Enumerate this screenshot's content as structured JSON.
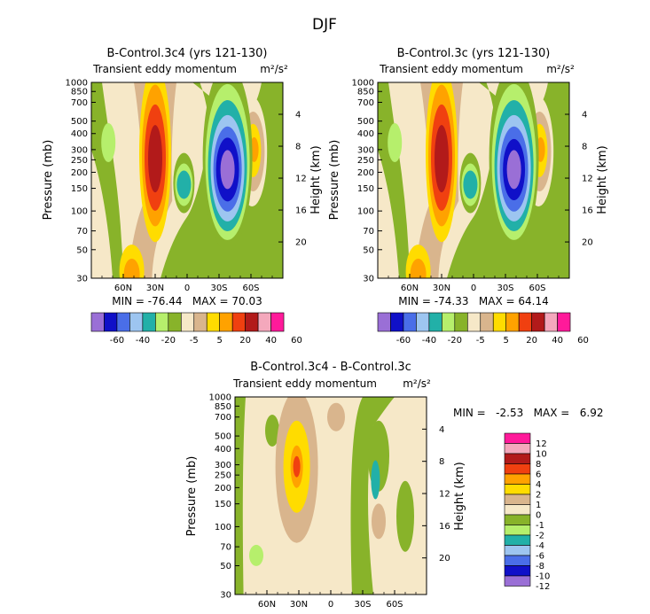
{
  "figure_title": "DJF",
  "chart_data": [
    {
      "type": "contour",
      "title": "B-Control.3c4 (yrs 121-130)",
      "subtitle": "Transient eddy momentum",
      "units": "m²/s²",
      "ylabel": "Pressure (mb)",
      "ylabel_right": "Height (km)",
      "x_ticks": [
        "60N",
        "30N",
        "0",
        "30S",
        "60S"
      ],
      "x_tick_values": [
        60,
        30,
        0,
        -30,
        -60
      ],
      "xlim": [
        90,
        -90
      ],
      "y_ticks": [
        "30",
        "50",
        "70",
        "100",
        "150",
        "200",
        "250",
        "300",
        "400",
        "500",
        "700",
        "850",
        "1000"
      ],
      "y_tick_values": [
        30,
        50,
        70,
        100,
        150,
        200,
        250,
        300,
        400,
        500,
        700,
        850,
        1000
      ],
      "ylim": [
        1000,
        30
      ],
      "height_ticks": [
        "20",
        "16",
        "12",
        "8",
        "4"
      ],
      "height_tick_values": [
        20,
        16,
        12,
        8,
        4
      ],
      "min_max_text": "MIN = -76.44   MAX = 70.03",
      "min": -76.44,
      "max": 70.03,
      "contour_levels": [
        "-60",
        "-40",
        "-20",
        "-5",
        "5",
        "20",
        "40",
        "60"
      ],
      "features": [
        {
          "name": "jet positive 30N",
          "lat": 30,
          "p": 260,
          "value": 70.03
        },
        {
          "name": "upper positive 60N",
          "lat": 52,
          "p": 35,
          "value": 25
        },
        {
          "name": "minimum 35S",
          "lat": -38,
          "p": 210,
          "value": -76.44
        },
        {
          "name": "small negative eq",
          "lat": 3,
          "p": 170,
          "value": -25
        },
        {
          "name": "positive 60S",
          "lat": -62,
          "p": 290,
          "value": 35
        }
      ]
    },
    {
      "type": "contour",
      "title": "B-Control.3c (yrs 121-130)",
      "subtitle": "Transient eddy momentum",
      "units": "m²/s²",
      "ylabel": "Pressure (mb)",
      "ylabel_right": "Height (km)",
      "x_ticks": [
        "60N",
        "30N",
        "0",
        "30S",
        "60S"
      ],
      "x_tick_values": [
        60,
        30,
        0,
        -30,
        -60
      ],
      "xlim": [
        90,
        -90
      ],
      "y_ticks": [
        "30",
        "50",
        "70",
        "100",
        "150",
        "200",
        "250",
        "300",
        "400",
        "500",
        "700",
        "850",
        "1000"
      ],
      "y_tick_values": [
        30,
        50,
        70,
        100,
        150,
        200,
        250,
        300,
        400,
        500,
        700,
        850,
        1000
      ],
      "ylim": [
        1000,
        30
      ],
      "height_ticks": [
        "20",
        "16",
        "12",
        "8",
        "4"
      ],
      "height_tick_values": [
        20,
        16,
        12,
        8,
        4
      ],
      "min_max_text": "MIN = -74.33   MAX = 64.14",
      "min": -74.33,
      "max": 64.14,
      "contour_levels": [
        "-60",
        "-40",
        "-20",
        "-5",
        "5",
        "20",
        "40",
        "60"
      ],
      "features": [
        {
          "name": "jet positive 30N",
          "lat": 30,
          "p": 255,
          "value": 64.14
        },
        {
          "name": "upper positive 60N",
          "lat": 52,
          "p": 35,
          "value": 25
        },
        {
          "name": "minimum 35S",
          "lat": -38,
          "p": 205,
          "value": -74.33
        },
        {
          "name": "small negative eq",
          "lat": 3,
          "p": 170,
          "value": -25
        },
        {
          "name": "positive 60S",
          "lat": -62,
          "p": 290,
          "value": 32
        }
      ]
    },
    {
      "type": "contour",
      "title": "B-Control.3c4 - B-Control.3c",
      "subtitle": "Transient eddy momentum",
      "units": "m²/s²",
      "ylabel": "Pressure (mb)",
      "ylabel_right": "Height (km)",
      "x_ticks": [
        "60N",
        "30N",
        "0",
        "30S",
        "60S"
      ],
      "x_tick_values": [
        60,
        30,
        0,
        -30,
        -60
      ],
      "xlim": [
        90,
        -90
      ],
      "y_ticks": [
        "30",
        "50",
        "70",
        "100",
        "150",
        "200",
        "250",
        "300",
        "400",
        "500",
        "700",
        "850",
        "1000"
      ],
      "y_tick_values": [
        30,
        50,
        70,
        100,
        150,
        200,
        250,
        300,
        400,
        500,
        700,
        850,
        1000
      ],
      "ylim": [
        1000,
        30
      ],
      "height_ticks": [
        "20",
        "16",
        "12",
        "8",
        "4"
      ],
      "height_tick_values": [
        20,
        16,
        12,
        8,
        4
      ],
      "min_max_text": "MIN =   -2.53   MAX =   6.92",
      "min": -2.53,
      "max": 6.92,
      "contour_levels": [
        "12",
        "10",
        "8",
        "6",
        "4",
        "2",
        "1",
        "0",
        "-1",
        "-2",
        "-4",
        "-6",
        "-8",
        "-10",
        "-12"
      ],
      "features": [
        {
          "name": "positive 30N",
          "lat": 32,
          "p": 290,
          "value": 6.92
        },
        {
          "name": "negative 40S",
          "lat": -42,
          "p": 230,
          "value": -2.53
        }
      ]
    }
  ],
  "colorbar_top": {
    "labels": [
      "-60",
      "-40",
      "-20",
      "-5",
      "5",
      "20",
      "40",
      "60"
    ],
    "colors": [
      "#9a6fd6",
      "#1010c8",
      "#4a6ee8",
      "#9dc5f0",
      "#22b0a8",
      "#b6ef6c",
      "#88b32a",
      "#f6e8c8",
      "#d9b58d",
      "#ffdc00",
      "#ffa200",
      "#f04010",
      "#b21a1a",
      "#f4a8bc",
      "#ff1a9a"
    ]
  },
  "colorbar_bottom": {
    "labels": [
      "12",
      "10",
      "8",
      "6",
      "4",
      "2",
      "1",
      "0",
      "-1",
      "-2",
      "-4",
      "-6",
      "-8",
      "-10",
      "-12"
    ],
    "colors": [
      "#ff1a9a",
      "#f4a8bc",
      "#b21a1a",
      "#f04010",
      "#ffa200",
      "#ffdc00",
      "#d9b58d",
      "#f6e8c8",
      "#88b32a",
      "#b6ef6c",
      "#22b0a8",
      "#9dc5f0",
      "#4a6ee8",
      "#1010c8",
      "#9a6fd6"
    ]
  }
}
